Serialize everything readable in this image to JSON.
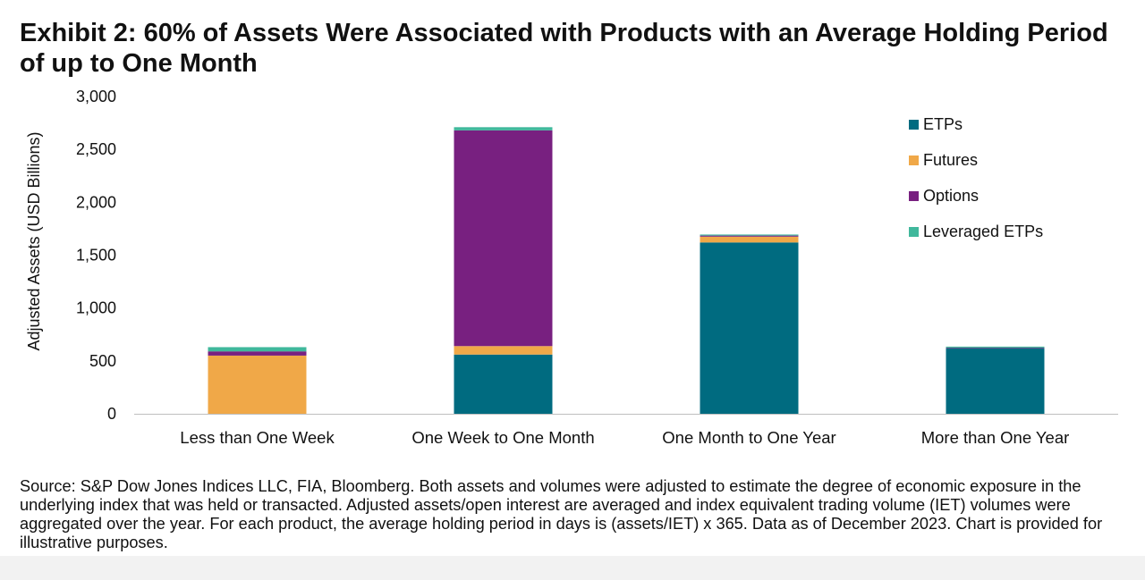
{
  "title": "Exhibit 2: 60% of Assets Were Associated with Products with an Average Holding Period of up to One Month",
  "source": "Source: S&P Dow Jones Indices LLC, FIA, Bloomberg. Both assets and volumes were adjusted to estimate the degree of economic exposure in the underlying index that was held or transacted. Adjusted assets/open interest are averaged and index equivalent trading volume (IET) volumes were aggregated over the year. For each product, the average holding period in days is (assets/IET) x 365. Data as of December 2023. Chart is provided for illustrative purposes.",
  "chart_data": {
    "type": "bar",
    "stacked": true,
    "categories": [
      "Less than One Week",
      "One Week to One Month",
      "One Month to One Year",
      "More than One Year"
    ],
    "series": [
      {
        "name": "ETPs",
        "color": "#006b80",
        "values": [
          0,
          560,
          1620,
          620
        ]
      },
      {
        "name": "Futures",
        "color": "#f0a848",
        "values": [
          550,
          80,
          55,
          0
        ]
      },
      {
        "name": "Options",
        "color": "#782080",
        "values": [
          40,
          2040,
          10,
          5
        ]
      },
      {
        "name": "Leveraged ETPs",
        "color": "#40b89c",
        "values": [
          40,
          30,
          10,
          10
        ]
      }
    ],
    "ylabel": "Adjusted Assets (USD Billions)",
    "xlabel": "",
    "ylim": [
      0,
      3000
    ],
    "yticks": [
      0,
      500,
      1000,
      1500,
      2000,
      2500,
      3000
    ],
    "ytick_labels": [
      "0",
      "500",
      "1,000",
      "1,500",
      "2,000",
      "2,500",
      "3,000"
    ],
    "grid": false,
    "legend_position": "top-right"
  }
}
